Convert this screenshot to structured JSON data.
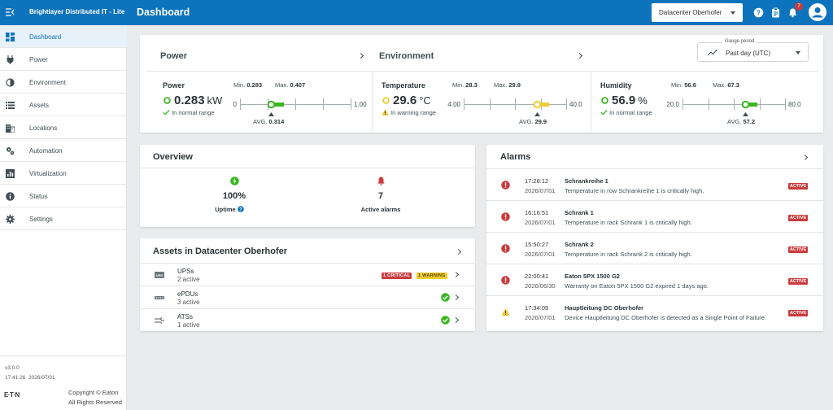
{
  "header": {
    "app_title": "Brightlayer Distributed IT - Lite",
    "page_title": "Dashboard",
    "datacenter_select": "Datacenter Oberhofer",
    "notification_count": "7"
  },
  "sidebar": {
    "items": [
      {
        "label": "Dashboard",
        "icon": "dashboard-icon"
      },
      {
        "label": "Power",
        "icon": "plug-icon"
      },
      {
        "label": "Environment",
        "icon": "contrast-icon"
      },
      {
        "label": "Assets",
        "icon": "list-icon"
      },
      {
        "label": "Locations",
        "icon": "building-icon"
      },
      {
        "label": "Automation",
        "icon": "gears-icon"
      },
      {
        "label": "Virtualization",
        "icon": "chart-icon"
      },
      {
        "label": "Status",
        "icon": "info-icon"
      },
      {
        "label": "Settings",
        "icon": "gear-icon"
      }
    ],
    "version": "v3.0.0",
    "time": "17:41:26",
    "date": "2026/07/01",
    "brand": "E·T·N",
    "copyright_line1": "Copyright ©  Eaton",
    "copyright_line2": "All Rights Reserved"
  },
  "gauges": {
    "power_header": "Power",
    "environment_header": "Environment",
    "period_label": "Gauge period",
    "period_value": "Past day (UTC)",
    "items": [
      {
        "name": "Power",
        "value": "0.283",
        "unit": "kW",
        "status": "In normal range",
        "min_label": "Min.",
        "min": "0.283",
        "max_label": "Max.",
        "max": "0.407",
        "scale_min": "0",
        "scale_max": "1.00",
        "avg_label": "AVG.",
        "avg": "0.314",
        "position": 0.283,
        "state_color": "#39b620"
      },
      {
        "name": "Temperature",
        "value": "29.6",
        "unit": "°C",
        "status": "In warning range",
        "min_label": "Min.",
        "min": "28.3",
        "max_label": "Max.",
        "max": "29.9",
        "scale_min": "4.00",
        "scale_max": "40.0",
        "avg_label": "AVG.",
        "avg": "29.9",
        "position": 0.711,
        "state_color": "#f0cb2f"
      },
      {
        "name": "Humidity",
        "value": "56.9",
        "unit": "%",
        "status": "In normal range",
        "min_label": "Min.",
        "min": "56.6",
        "max_label": "Max.",
        "max": "67.3",
        "scale_min": "20.0",
        "scale_max": "80.0",
        "avg_label": "AVG.",
        "avg": "57.2",
        "position": 0.615,
        "state_color": "#39b620"
      }
    ]
  },
  "overview": {
    "title": "Overview",
    "uptime_value": "100%",
    "uptime_label": "Uptime",
    "alarms_value": "7",
    "alarms_label": "Active alarms"
  },
  "assets": {
    "title": "Assets in Datacenter Oberhofer",
    "rows": [
      {
        "name": "UPSs",
        "count": "2 active",
        "critical": "1 CRITICAL",
        "warning": "1 WARNING"
      },
      {
        "name": "ePDUs",
        "count": "3 active"
      },
      {
        "name": "ATSs",
        "count": "1 active"
      }
    ]
  },
  "alarms": {
    "title": "Alarms",
    "items": [
      {
        "time": "17:28:12",
        "date": "2026/07/01",
        "name": "Schrankreihe 1",
        "message": "Temperature in row Schrankreihe 1 is critically high.",
        "status": "ACTIVE",
        "severity": "critical"
      },
      {
        "time": "16:16:51",
        "date": "2026/07/01",
        "name": "Schrank 1",
        "message": "Temperature in rack Schrank 1 is critically high.",
        "status": "ACTIVE",
        "severity": "critical"
      },
      {
        "time": "15:50:27",
        "date": "2026/07/01",
        "name": "Schrank 2",
        "message": "Temperature in rack Schrank 2 is critically high.",
        "status": "ACTIVE",
        "severity": "critical"
      },
      {
        "time": "22:00:41",
        "date": "2026/06/30",
        "name": "Eaton 5PX 1500 G2",
        "message": "Warranty on Eaton 5PX 1500 G2 expired 1 days ago.",
        "status": "ACTIVE",
        "severity": "critical"
      },
      {
        "time": "17:34:09",
        "date": "2026/07/01",
        "name": "Hauptleitung DC Oberhofer",
        "message": "Device Hauptleitung DC Oberhofer is detected as a Single Point of Failure.",
        "status": "ACTIVE",
        "severity": "warning"
      }
    ]
  }
}
